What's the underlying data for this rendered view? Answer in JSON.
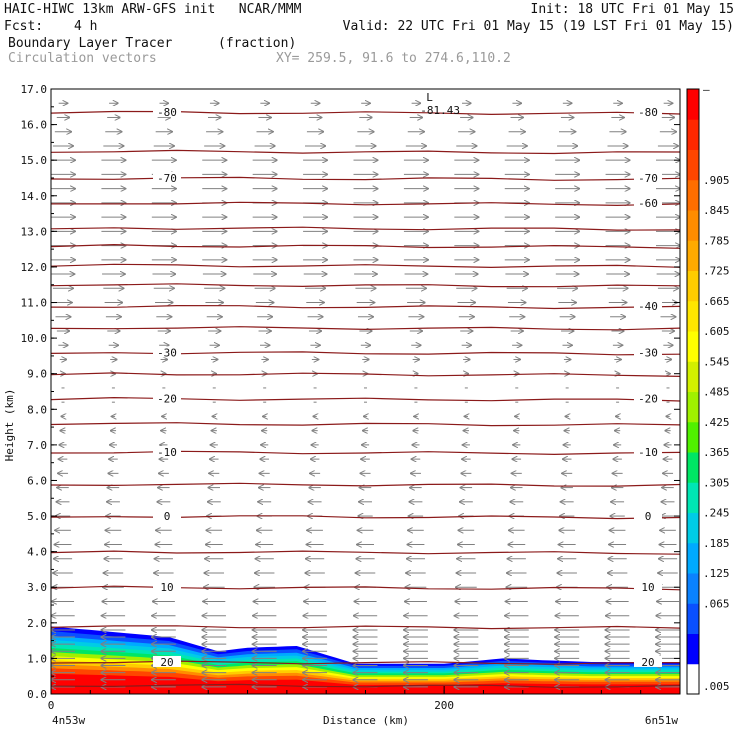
{
  "header": {
    "title": "HAIC-HIWC 13km ARW-GFS init   NCAR/MMM",
    "init": "Init: 18 UTC Fri 01 May 15",
    "fcst_label": "Fcst:",
    "fcst_value": "4 h",
    "valid": "Valid: 22 UTC Fri 01 May 15 (19 LST Fri 01 May 15)",
    "field_name": "Boundary Layer Tracer",
    "field_units": "(fraction)",
    "vector_label": "Circulation vectors",
    "xy_text": "XY= 259.5, 91.6 to 274.6,110.2"
  },
  "colors": {
    "contour": "#8b1a1a",
    "vector": "#808080",
    "tracer_scale": [
      "#ffffff",
      "#0000ff",
      "#0a50ff",
      "#0a82ff",
      "#00aaff",
      "#00cce6",
      "#00e6b4",
      "#00e664",
      "#50f000",
      "#a0f000",
      "#d2f000",
      "#ffff00",
      "#ffe600",
      "#ffcc00",
      "#ffaa00",
      "#ff8c00",
      "#ff6e00",
      "#ff4600",
      "#ff2800",
      "#ff0000"
    ]
  },
  "chart_data": {
    "type": "cross-section",
    "title": "Boundary Layer Tracer",
    "units": "(fraction)",
    "ylabel": "Height (km)",
    "xlabel": "Distance (km)",
    "x_left_label": "4n53w",
    "x_right_label": "6n51w",
    "ylim": [
      0,
      17
    ],
    "xlim": [
      0,
      320
    ],
    "y_ticks": [
      "0.0",
      "1.0",
      "2.0",
      "3.0",
      "4.0",
      "5.0",
      "6.0",
      "7.0",
      "8.0",
      "9.0",
      "10.0",
      "11.0",
      "12.0",
      "13.0",
      "14.0",
      "15.0",
      "16.0",
      "17.0"
    ],
    "x_ticks": [
      {
        "value": 0,
        "label": "0"
      },
      {
        "value": 200,
        "label": "200"
      }
    ],
    "temperature_contours": [
      {
        "height_km": 0.25,
        "label": ""
      },
      {
        "height_km": 0.9,
        "label": "20",
        "label_left": true,
        "label_right": true
      },
      {
        "height_km": 1.9,
        "label": ""
      },
      {
        "height_km": 3.0,
        "label": "10",
        "label_left": true,
        "label_right": true
      },
      {
        "height_km": 4.0,
        "label": ""
      },
      {
        "height_km": 5.0,
        "label": "0",
        "label_left": true,
        "label_right": true
      },
      {
        "height_km": 5.9,
        "label": ""
      },
      {
        "height_km": 6.8,
        "label": "-10",
        "label_left": true,
        "label_right": true
      },
      {
        "height_km": 7.6,
        "label": ""
      },
      {
        "height_km": 8.3,
        "label": "-20",
        "label_left": true,
        "label_right": true
      },
      {
        "height_km": 9.0,
        "label": ""
      },
      {
        "height_km": 9.6,
        "label": "-30",
        "label_left": true,
        "label_right": true
      },
      {
        "height_km": 10.3,
        "label": ""
      },
      {
        "height_km": 10.9,
        "label": "-40",
        "label_left": false,
        "label_right": true
      },
      {
        "height_km": 11.5,
        "label": ""
      },
      {
        "height_km": 12.05,
        "label": ""
      },
      {
        "height_km": 12.6,
        "label": ""
      },
      {
        "height_km": 13.1,
        "label": ""
      },
      {
        "height_km": 13.8,
        "label": "-60",
        "label_left": false,
        "label_right": true
      },
      {
        "height_km": 14.5,
        "label": "-70",
        "label_left": true,
        "label_right": true
      },
      {
        "height_km": 15.25,
        "label": ""
      },
      {
        "height_km": 16.35,
        "label": "-80",
        "label_left": true,
        "label_right": true
      }
    ],
    "min_label": {
      "text": "L",
      "value": "-81.43",
      "x_km": 195,
      "height_km": 16.5
    },
    "tracer_top_km": [
      {
        "x_km": 0,
        "top": 1.9
      },
      {
        "x_km": 20,
        "top": 1.8
      },
      {
        "x_km": 60,
        "top": 1.6
      },
      {
        "x_km": 85,
        "top": 1.2
      },
      {
        "x_km": 100,
        "top": 1.3
      },
      {
        "x_km": 125,
        "top": 1.35
      },
      {
        "x_km": 140,
        "top": 1.1
      },
      {
        "x_km": 155,
        "top": 0.85
      },
      {
        "x_km": 200,
        "top": 0.85
      },
      {
        "x_km": 230,
        "top": 1.0
      },
      {
        "x_km": 250,
        "top": 0.95
      },
      {
        "x_km": 275,
        "top": 0.9
      },
      {
        "x_km": 320,
        "top": 0.9
      }
    ],
    "vectors": {
      "rows_km": [
        0.2,
        0.4,
        0.6,
        0.8,
        1.0,
        1.2,
        1.4,
        1.6,
        1.8,
        2.2,
        2.6,
        3.0,
        3.4,
        3.8,
        4.2,
        4.6,
        5.0,
        5.4,
        5.8,
        6.2,
        6.6,
        7.0,
        7.4,
        7.8,
        8.2,
        8.6,
        9.0,
        9.4,
        9.8,
        10.2,
        10.6,
        11.0,
        11.4,
        11.8,
        12.2,
        12.6,
        13.0,
        13.4,
        13.8,
        14.2,
        14.6,
        15.0,
        15.4,
        15.8,
        16.2,
        16.6
      ],
      "u_by_height": [
        {
          "height_km": 0,
          "u": -1.0
        },
        {
          "height_km": 2.0,
          "u": -1.0
        },
        {
          "height_km": 5.0,
          "u": -0.6
        },
        {
          "height_km": 7.0,
          "u": -0.3
        },
        {
          "height_km": 8.5,
          "u": 0.0
        },
        {
          "height_km": 10.5,
          "u": 0.6
        },
        {
          "height_km": 12.0,
          "u": 1.0
        },
        {
          "height_km": 15.0,
          "u": 1.0
        },
        {
          "height_km": 17.0,
          "u": 0.2
        }
      ]
    },
    "colorbar": {
      "top_label": "–",
      "labels": [
        ".905",
        ".845",
        ".785",
        ".725",
        ".665",
        ".605",
        ".545",
        ".485",
        ".425",
        ".365",
        ".305",
        ".245",
        ".185",
        ".125",
        ".065",
        ".005"
      ]
    }
  }
}
